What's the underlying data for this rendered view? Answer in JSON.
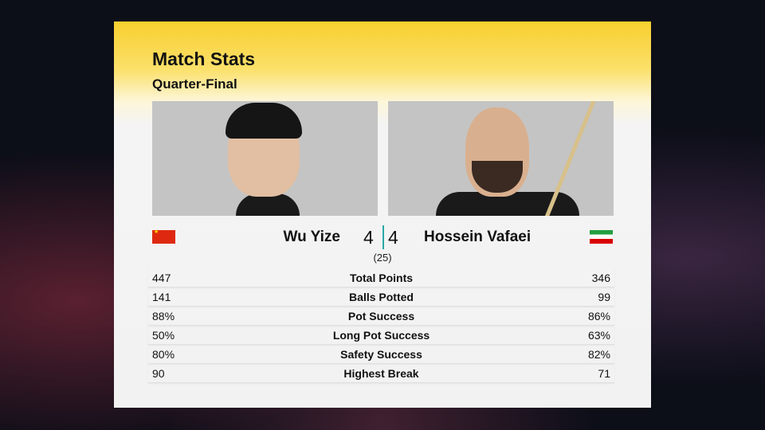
{
  "header": {
    "title": "Match Stats",
    "subtitle": "Quarter-Final"
  },
  "players": [
    {
      "name": "Wu Yize",
      "score": "4",
      "flag": "china-flag"
    },
    {
      "name": "Hossein Vafaei",
      "score": "4",
      "flag": "iran-flag"
    }
  ],
  "frames": "(25)",
  "stats": [
    {
      "label": "Total Points",
      "left": "447",
      "right": "346"
    },
    {
      "label": "Balls Potted",
      "left": "141",
      "right": "99"
    },
    {
      "label": "Pot Success",
      "left": "88%",
      "right": "86%"
    },
    {
      "label": "Long Pot Success",
      "left": "50%",
      "right": "63%"
    },
    {
      "label": "Safety Success",
      "left": "80%",
      "right": "82%"
    },
    {
      "label": "Highest Break",
      "left": "90",
      "right": "71"
    }
  ],
  "colors": {
    "accent": "#f7cf2e",
    "separator": "#2aa8a8"
  }
}
